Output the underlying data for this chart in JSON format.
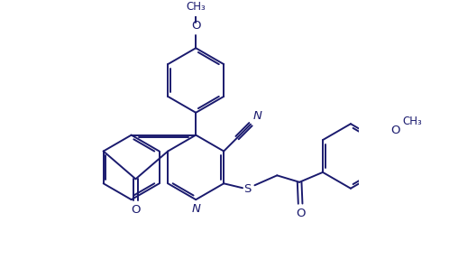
{
  "bg_color": "#ffffff",
  "line_color": "#1a1a6e",
  "lw": 1.4,
  "dg": 0.055,
  "figsize": [
    4.98,
    3.08
  ],
  "dpi": 100,
  "xlim": [
    -0.2,
    5.8
  ],
  "ylim": [
    -2.8,
    3.0
  ]
}
